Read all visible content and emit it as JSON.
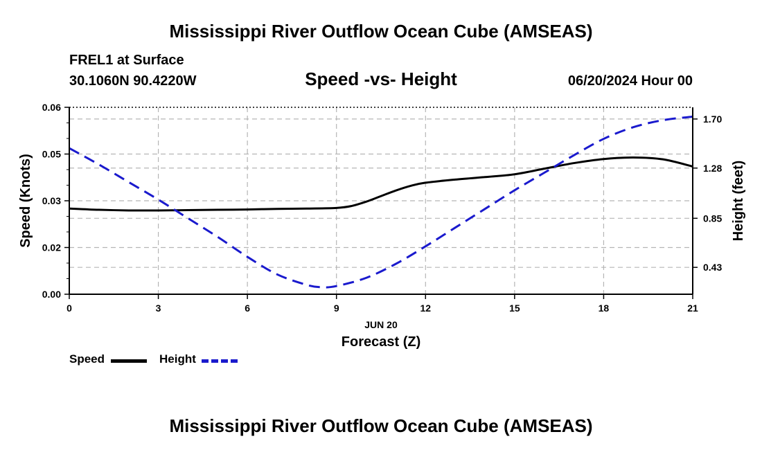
{
  "header": {
    "title": "Mississippi River Outflow Ocean Cube (AMSEAS)",
    "station": "FREL1 at Surface",
    "location": "30.1060N  90.4220W",
    "datetime": "06/20/2024 Hour 00"
  },
  "footer": {
    "title": "Mississippi River Outflow Ocean Cube (AMSEAS)"
  },
  "colors": {
    "speed": "#000000",
    "height": "#1a1acd",
    "grid": "#b5b5b5"
  },
  "chart_data": {
    "type": "line",
    "title": "Speed -vs- Height",
    "xlabel": "Forecast (Z)",
    "xsublabel": "JUN 20",
    "ylabel": "Speed (Knots)",
    "y2label": "Height (feet)",
    "xlim": [
      0,
      21
    ],
    "ylim": [
      0,
      0.06
    ],
    "y2lim": [
      0.2,
      1.8
    ],
    "x_ticks": [
      0,
      3,
      6,
      9,
      12,
      15,
      18,
      21
    ],
    "x_tick_labels": [
      "0",
      "3",
      "6",
      "9",
      "12",
      "15",
      "18",
      "21"
    ],
    "y_ticks": [
      0,
      0.015,
      0.03,
      0.045,
      0.06
    ],
    "y_tick_labels": [
      "0.00",
      "0.02",
      "0.03",
      "0.05",
      "0.06"
    ],
    "y2_ticks": [
      0.43,
      0.85,
      1.28,
      1.7
    ],
    "y2_tick_labels": [
      "0.43",
      "0.85",
      "1.28",
      "1.70"
    ],
    "series": [
      {
        "name": "Speed",
        "axis": "left",
        "style": "solid",
        "x": [
          0,
          1,
          2,
          3,
          4,
          5,
          6,
          7,
          8,
          9,
          9.5,
          10,
          10.5,
          11,
          11.5,
          12,
          13,
          14,
          15,
          16,
          17,
          18,
          19,
          20,
          21
        ],
        "values": [
          0.0275,
          0.0271,
          0.0269,
          0.0269,
          0.027,
          0.0271,
          0.0272,
          0.0274,
          0.0275,
          0.0277,
          0.0283,
          0.0297,
          0.0315,
          0.0333,
          0.0348,
          0.0358,
          0.0368,
          0.0376,
          0.0385,
          0.0403,
          0.0421,
          0.0434,
          0.0439,
          0.0433,
          0.041
        ]
      },
      {
        "name": "Height",
        "axis": "right",
        "style": "dashed",
        "x": [
          0,
          1,
          2,
          3,
          4,
          5,
          6,
          7,
          8,
          8.5,
          9,
          10,
          11,
          12,
          13,
          14,
          15,
          16,
          17,
          18,
          19,
          20,
          21
        ],
        "values": [
          1.45,
          1.31,
          1.16,
          1.01,
          0.85,
          0.69,
          0.52,
          0.37,
          0.28,
          0.26,
          0.27,
          0.34,
          0.46,
          0.61,
          0.77,
          0.93,
          1.09,
          1.24,
          1.39,
          1.53,
          1.63,
          1.69,
          1.72
        ]
      }
    ],
    "legend": [
      {
        "label": "Speed"
      },
      {
        "label": "Height"
      }
    ]
  }
}
